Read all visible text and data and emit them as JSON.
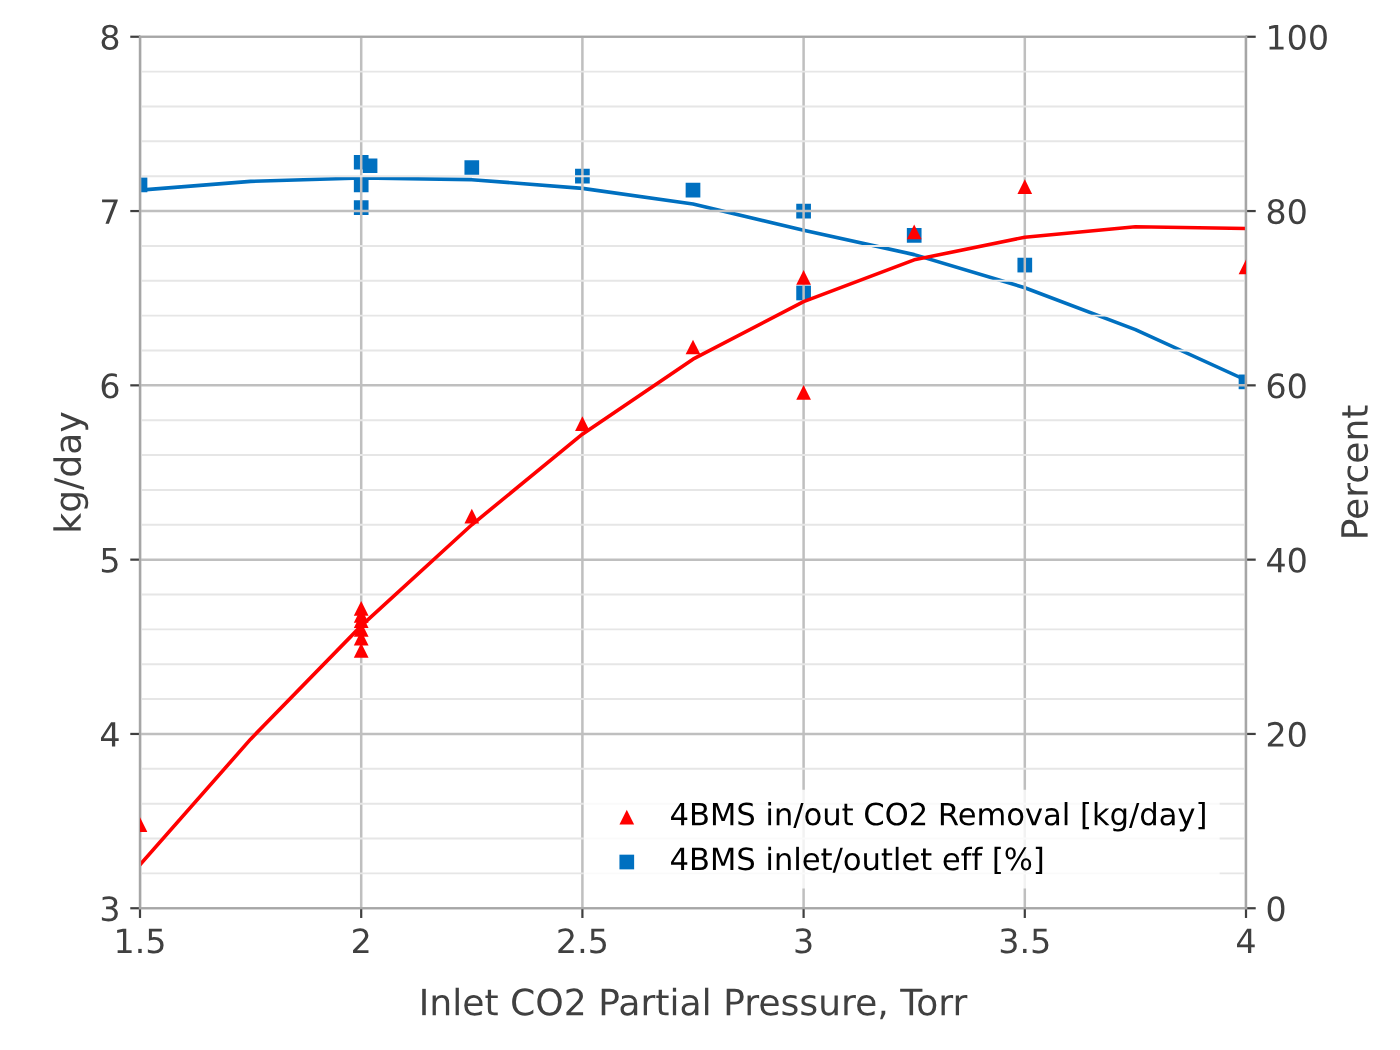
{
  "chart_data": {
    "type": "scatter",
    "xlabel": "Inlet CO2 Partial Pressure, Torr",
    "ylabel": "kg/day",
    "y2label": "Percent",
    "xlim": [
      1.5,
      4
    ],
    "xticks": [
      1.5,
      2,
      2.5,
      3,
      3.5,
      4
    ],
    "ylim": [
      3,
      8
    ],
    "yticks": [
      3,
      4,
      5,
      6,
      7,
      8
    ],
    "y2lim": [
      0,
      100
    ],
    "y2ticks": [
      0,
      20,
      40,
      60,
      80,
      100
    ],
    "grid": true,
    "legend": "bottom right",
    "series": [
      {
        "name": "4BMS in/out CO2 Removal [kg/day]",
        "marker": "triangle",
        "color": "#ff0000",
        "x": [
          1.5,
          2,
          2,
          2,
          2,
          2,
          2,
          2.25,
          2.5,
          2.75,
          3,
          3,
          3.25,
          3.5,
          4
        ],
        "values": [
          3.48,
          4.72,
          4.68,
          4.65,
          4.6,
          4.55,
          4.48,
          5.25,
          5.78,
          6.22,
          6.62,
          5.96,
          6.88,
          7.14,
          6.68
        ]
      },
      {
        "name": "4BMS inlet/outlet eff [%]",
        "marker": "square",
        "axis": "y2",
        "color": "#0070c0",
        "x": [
          1.5,
          2,
          2,
          2,
          2.02,
          2.25,
          2.5,
          2.75,
          3,
          3,
          3.25,
          3.5,
          4
        ],
        "values": [
          83,
          85.6,
          83,
          80.4,
          85.2,
          85,
          84,
          82.4,
          80,
          70.6,
          77.2,
          73.8,
          60.4
        ]
      },
      {
        "type": "line",
        "marker": "none",
        "line_style": "solid",
        "color": "#ff0000",
        "x": [
          1.5,
          1.75,
          2,
          2.25,
          2.5,
          2.75,
          3,
          3.25,
          3.5,
          3.75,
          4
        ],
        "values": [
          3.25,
          3.97,
          4.62,
          5.2,
          5.72,
          6.15,
          6.48,
          6.72,
          6.85,
          6.91,
          6.9
        ]
      },
      {
        "type": "line",
        "marker": "none",
        "line_style": "solid",
        "axis": "y2",
        "color": "#0070c0",
        "x": [
          1.5,
          1.75,
          2,
          2.25,
          2.5,
          2.75,
          3,
          3.25,
          3.5,
          3.75,
          4
        ],
        "values": [
          82.4,
          83.4,
          83.8,
          83.6,
          82.6,
          80.8,
          77.8,
          75,
          71.2,
          66.4,
          60.6
        ]
      }
    ]
  }
}
